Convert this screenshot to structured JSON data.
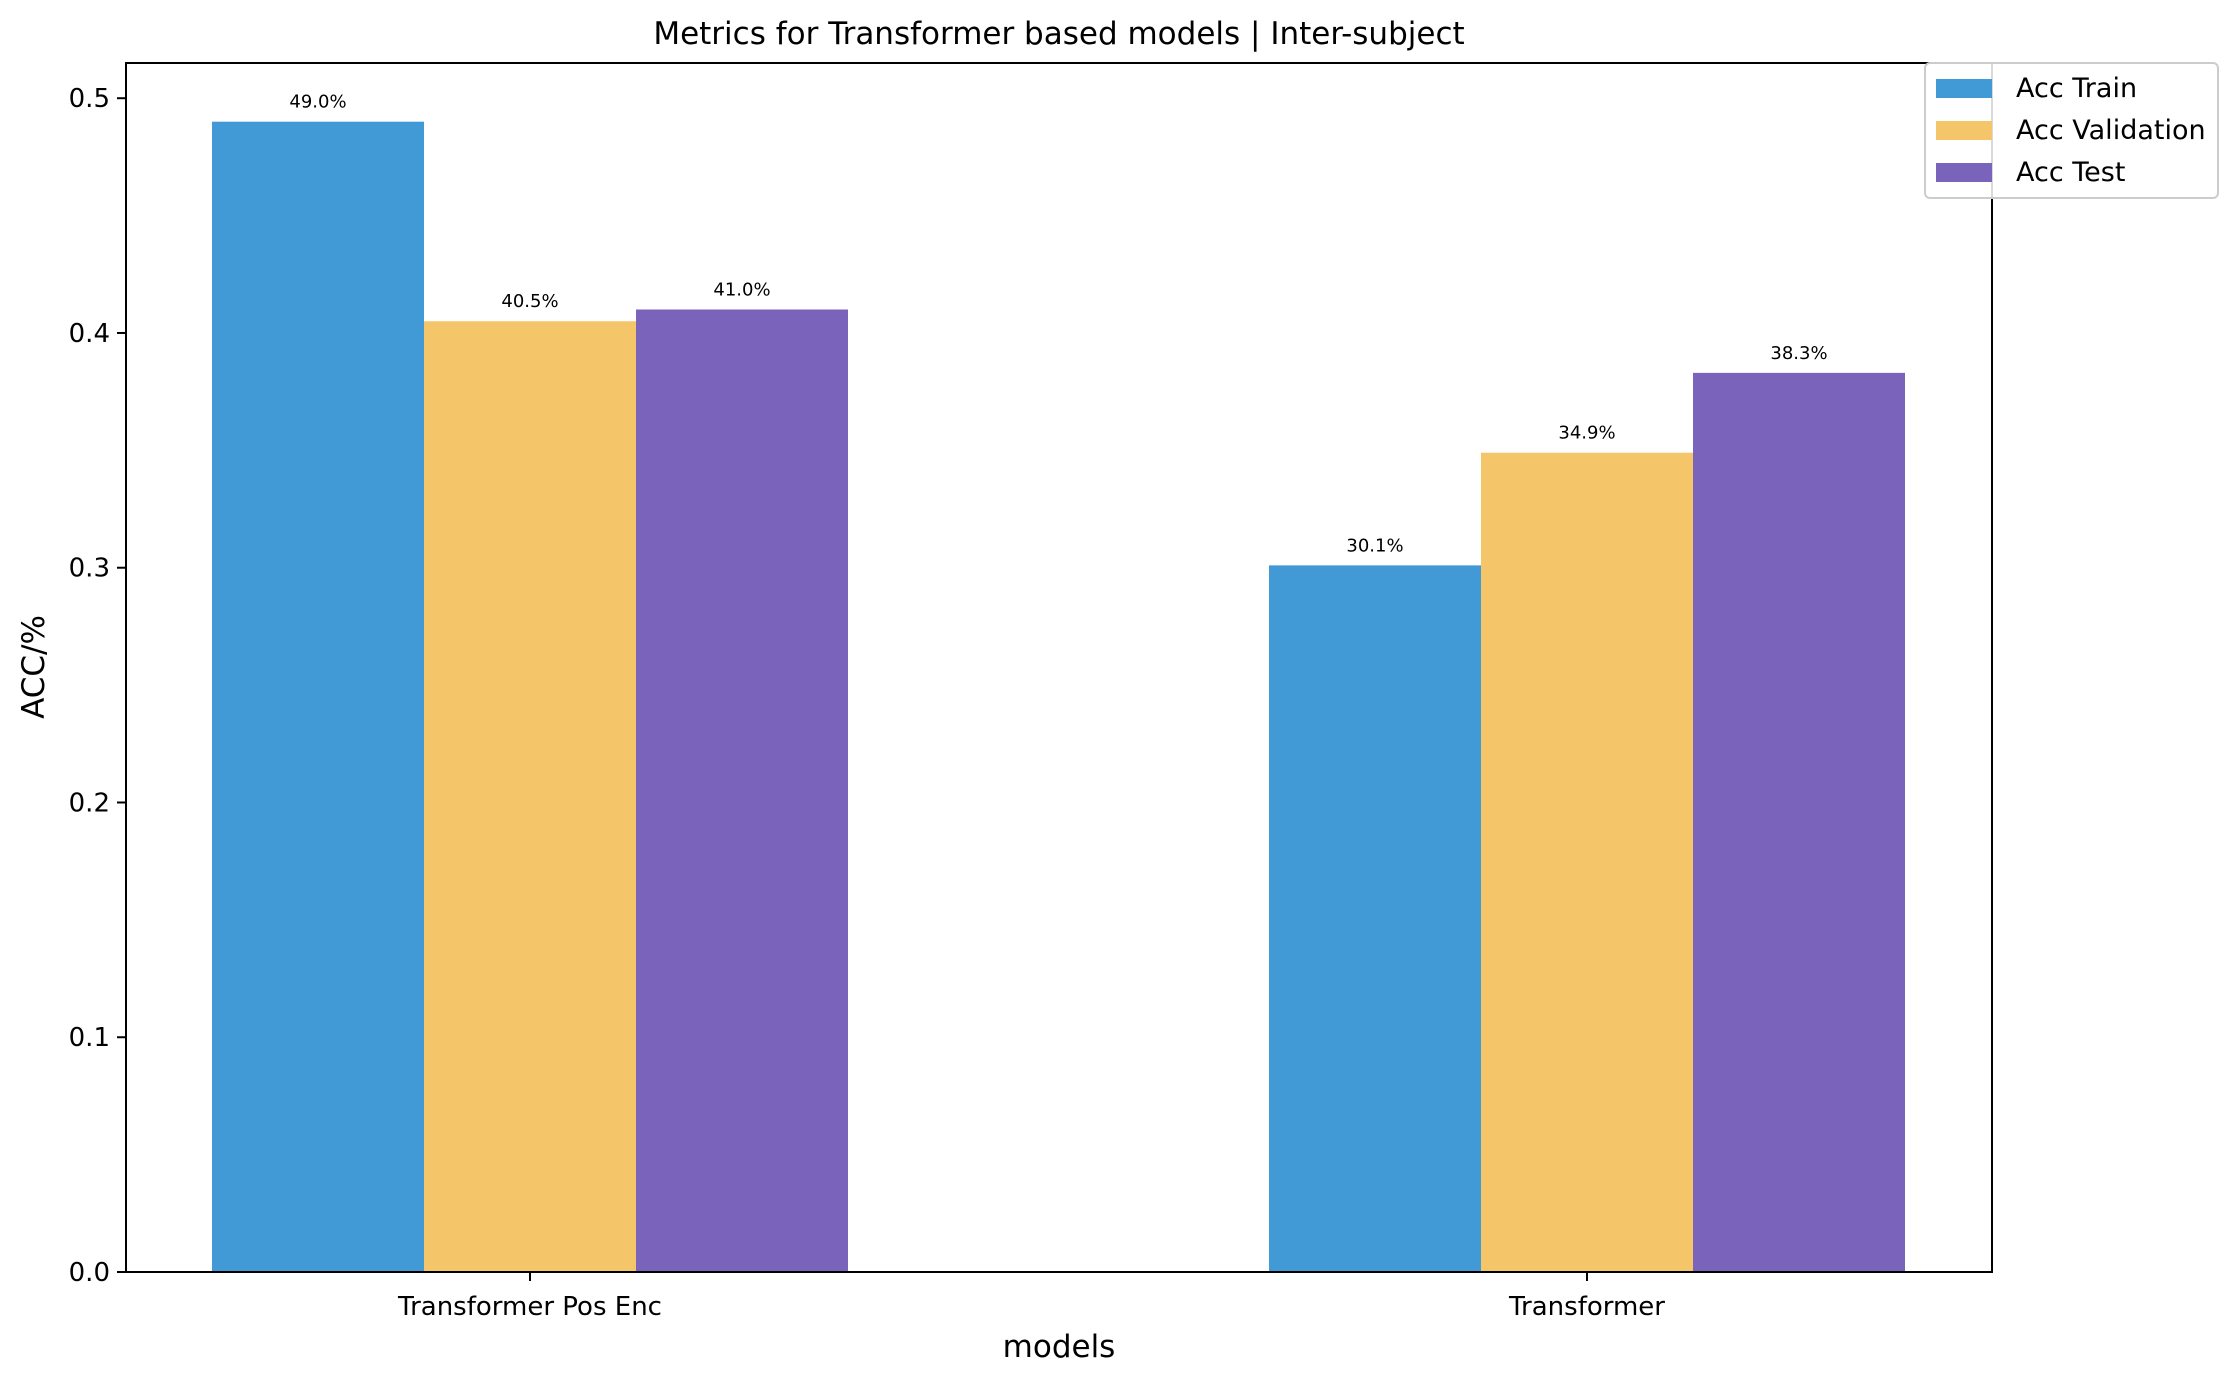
{
  "chart_data": {
    "type": "bar",
    "title": "Metrics for Transformer based models | Inter-subject",
    "xlabel": "models",
    "ylabel": "ACC/%",
    "categories": [
      "Transformer Pos Enc",
      "Transformer"
    ],
    "ylim": [
      0,
      0.515
    ],
    "yticks": [
      0.0,
      0.1,
      0.2,
      0.3,
      0.4,
      0.5
    ],
    "ytick_labels": [
      "0.0",
      "0.1",
      "0.2",
      "0.3",
      "0.4",
      "0.5"
    ],
    "grid": false,
    "legend_position": "top-right",
    "series": [
      {
        "name": "Acc Train",
        "color": "#4199d6",
        "values": [
          0.49,
          0.301
        ],
        "labels": [
          "49.0%",
          "30.1%"
        ]
      },
      {
        "name": "Acc Validation",
        "color": "#f5c669",
        "values": [
          0.405,
          0.349
        ],
        "labels": [
          "40.5%",
          "34.9%"
        ]
      },
      {
        "name": "Acc Test",
        "color": "#7a63bb",
        "values": [
          0.41,
          0.383
        ],
        "labels": [
          "41.0%",
          "38.3%"
        ]
      }
    ]
  }
}
